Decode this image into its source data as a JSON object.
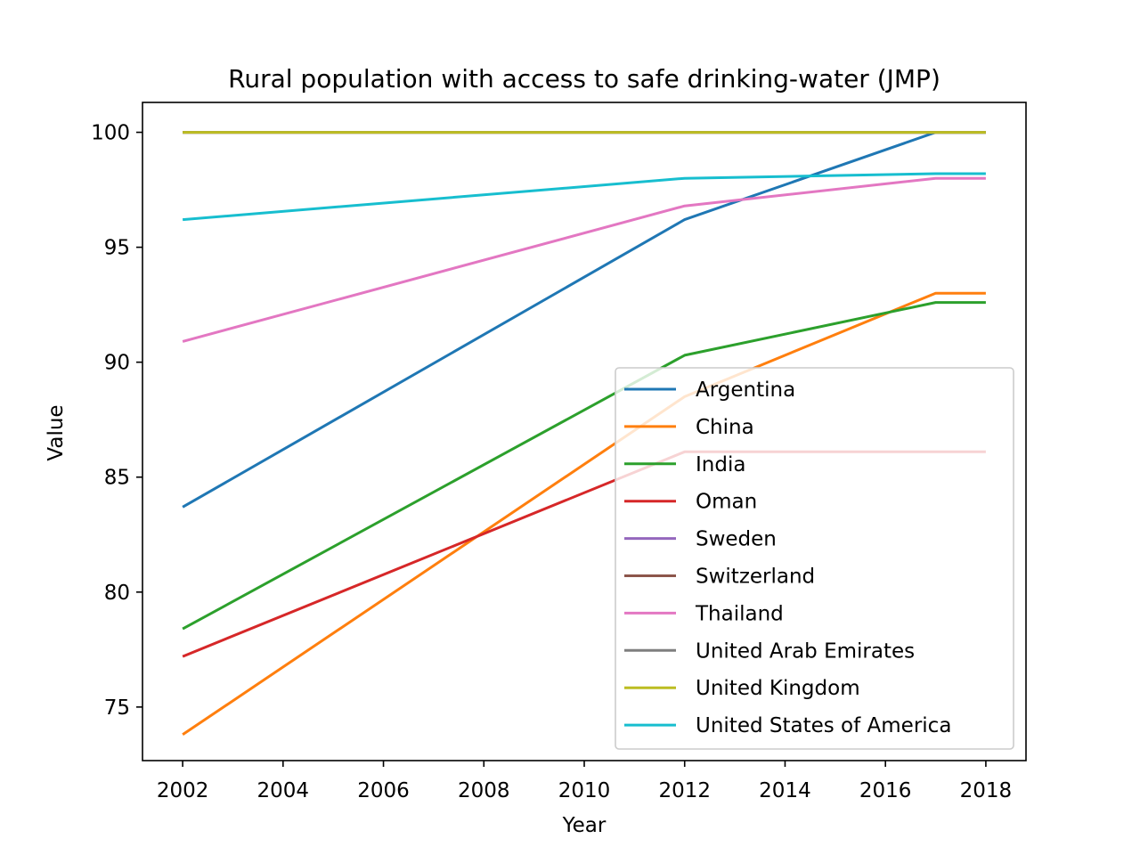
{
  "chart_data": {
    "type": "line",
    "title": "Rural population with access to safe drinking-water (JMP)",
    "xlabel": "Year",
    "ylabel": "Value",
    "xlim": [
      2001.2,
      2018.8
    ],
    "ylim": [
      72.67,
      101.3
    ],
    "xticks": [
      2002,
      2004,
      2006,
      2008,
      2010,
      2012,
      2014,
      2016,
      2018
    ],
    "yticks": [
      75,
      80,
      85,
      90,
      95,
      100
    ],
    "grid": false,
    "legend_position": "lower-right",
    "x": [
      2002,
      2012,
      2017,
      2018
    ],
    "series": [
      {
        "name": "Argentina",
        "color": "#1f77b4",
        "values": [
          83.7,
          96.2,
          100,
          100
        ]
      },
      {
        "name": "China",
        "color": "#ff7f0e",
        "values": [
          73.8,
          88.5,
          93,
          93
        ]
      },
      {
        "name": "India",
        "color": "#2ca02c",
        "values": [
          78.4,
          90.3,
          92.6,
          92.6
        ]
      },
      {
        "name": "Oman",
        "color": "#d62728",
        "values": [
          77.2,
          86.1,
          86.1,
          86.1
        ]
      },
      {
        "name": "Sweden",
        "color": "#9467bd",
        "values": [
          100,
          100,
          100,
          100
        ]
      },
      {
        "name": "Switzerland",
        "color": "#8c564b",
        "values": [
          100,
          100,
          100,
          100
        ]
      },
      {
        "name": "Thailand",
        "color": "#e377c2",
        "values": [
          90.9,
          96.8,
          98,
          98
        ]
      },
      {
        "name": "United Arab Emirates",
        "color": "#7f7f7f",
        "values": [
          100,
          100,
          100,
          100
        ]
      },
      {
        "name": "United Kingdom",
        "color": "#bcbd22",
        "values": [
          100,
          100,
          100,
          100
        ]
      },
      {
        "name": "United States of America",
        "color": "#17becf",
        "values": [
          96.2,
          98,
          98.2,
          98.2
        ]
      }
    ]
  }
}
